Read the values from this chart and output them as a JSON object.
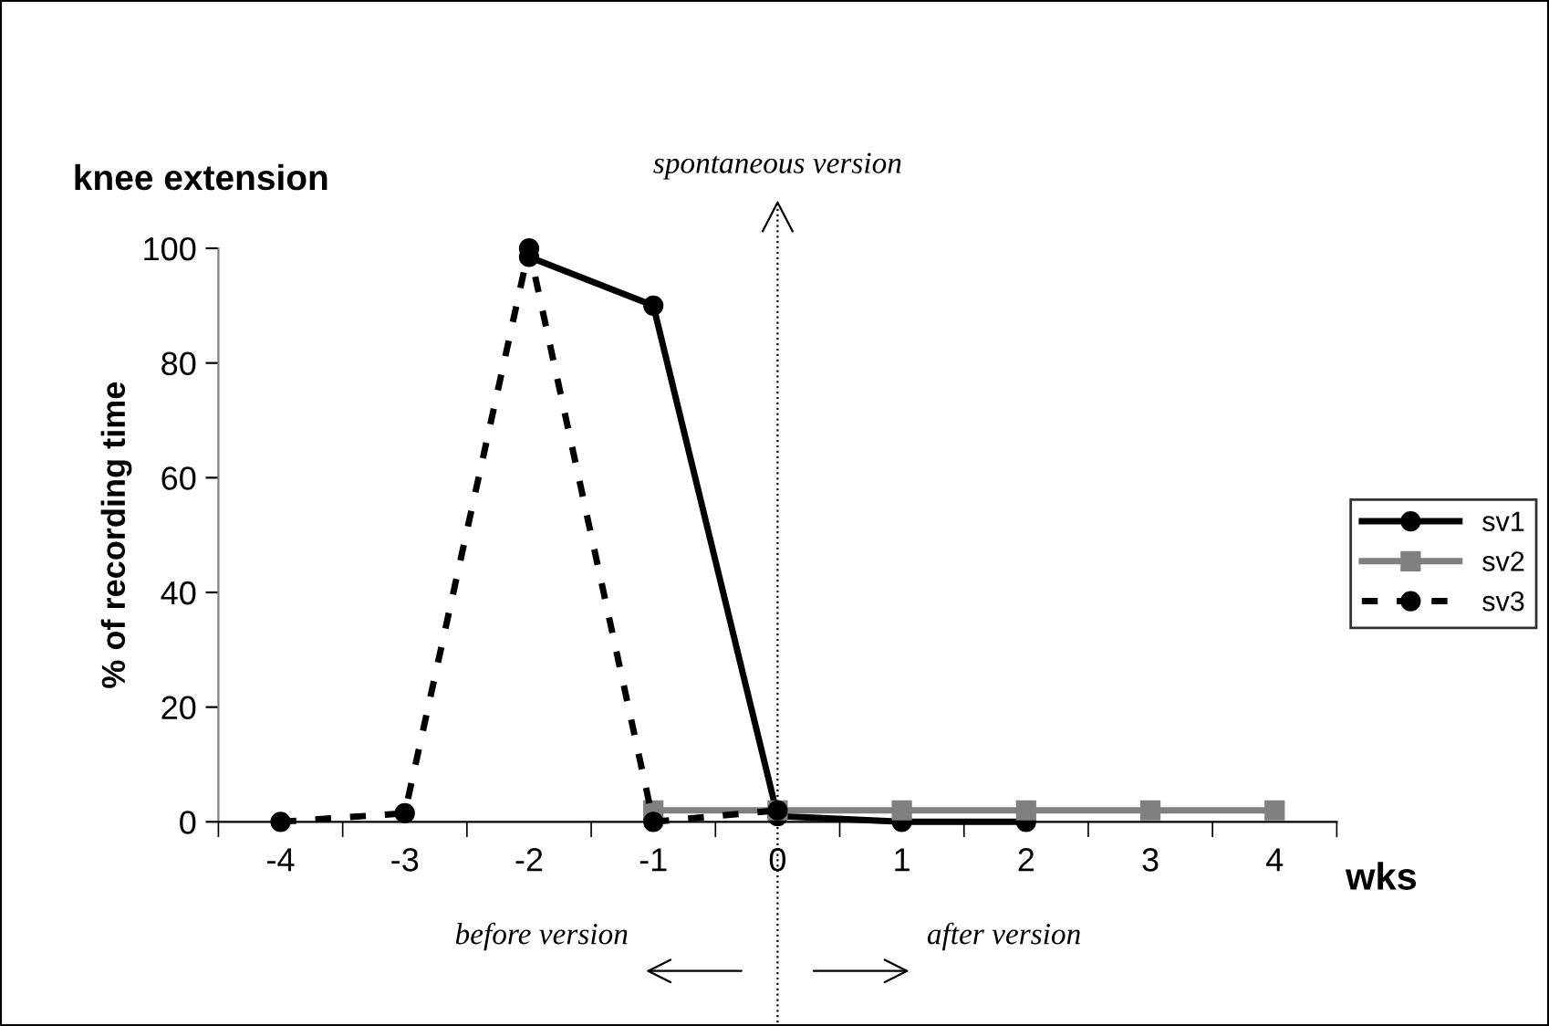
{
  "chart_data": {
    "type": "line",
    "title": "knee extension",
    "xlabel": "wks",
    "ylabel": "% of recording time",
    "x": [
      -4,
      -3,
      -2,
      -1,
      0,
      1,
      2,
      3,
      4
    ],
    "xlim": [
      -4.5,
      4.5
    ],
    "xticks": [
      -4,
      -3,
      -2,
      -1,
      0,
      1,
      2,
      3,
      4,
      {
        "value": -4.5,
        "label": null
      },
      {
        "value": -3.5,
        "label": null
      },
      {
        "value": -2.5,
        "label": null
      },
      {
        "value": -1.5,
        "label": null
      },
      {
        "value": -0.5,
        "label": null
      },
      {
        "value": 0.5,
        "label": null
      },
      {
        "value": 1.5,
        "label": null
      },
      {
        "value": 2.5,
        "label": null
      },
      {
        "value": 3.5,
        "label": null
      },
      {
        "value": 4.5,
        "label": null
      }
    ],
    "series": [
      {
        "name": "sv1",
        "color": "#000000",
        "marker": "circle",
        "line_style": "solid",
        "values": [
          null,
          null,
          98.5,
          90,
          1,
          0,
          0,
          null,
          null
        ]
      },
      {
        "name": "sv2",
        "color": "#808080",
        "marker": "square",
        "line_style": "solid",
        "values": [
          null,
          null,
          null,
          2,
          2,
          2,
          2,
          2,
          2
        ]
      },
      {
        "name": "sv3",
        "color": "#000000",
        "marker": "circle",
        "line_style": "dashed",
        "values": [
          0,
          1.5,
          100,
          0,
          2,
          null,
          null,
          null,
          null
        ]
      }
    ],
    "ylim": [
      0,
      100
    ],
    "yticks": [
      0,
      20,
      40,
      60,
      80,
      100
    ],
    "grid": false,
    "legend": "right",
    "ref_lines": [
      {
        "axis": "x",
        "value": 0,
        "label": "spontaneous version",
        "line_style": "dotted",
        "color": "#000000"
      }
    ],
    "annotations": [
      "before version",
      "after version"
    ]
  }
}
